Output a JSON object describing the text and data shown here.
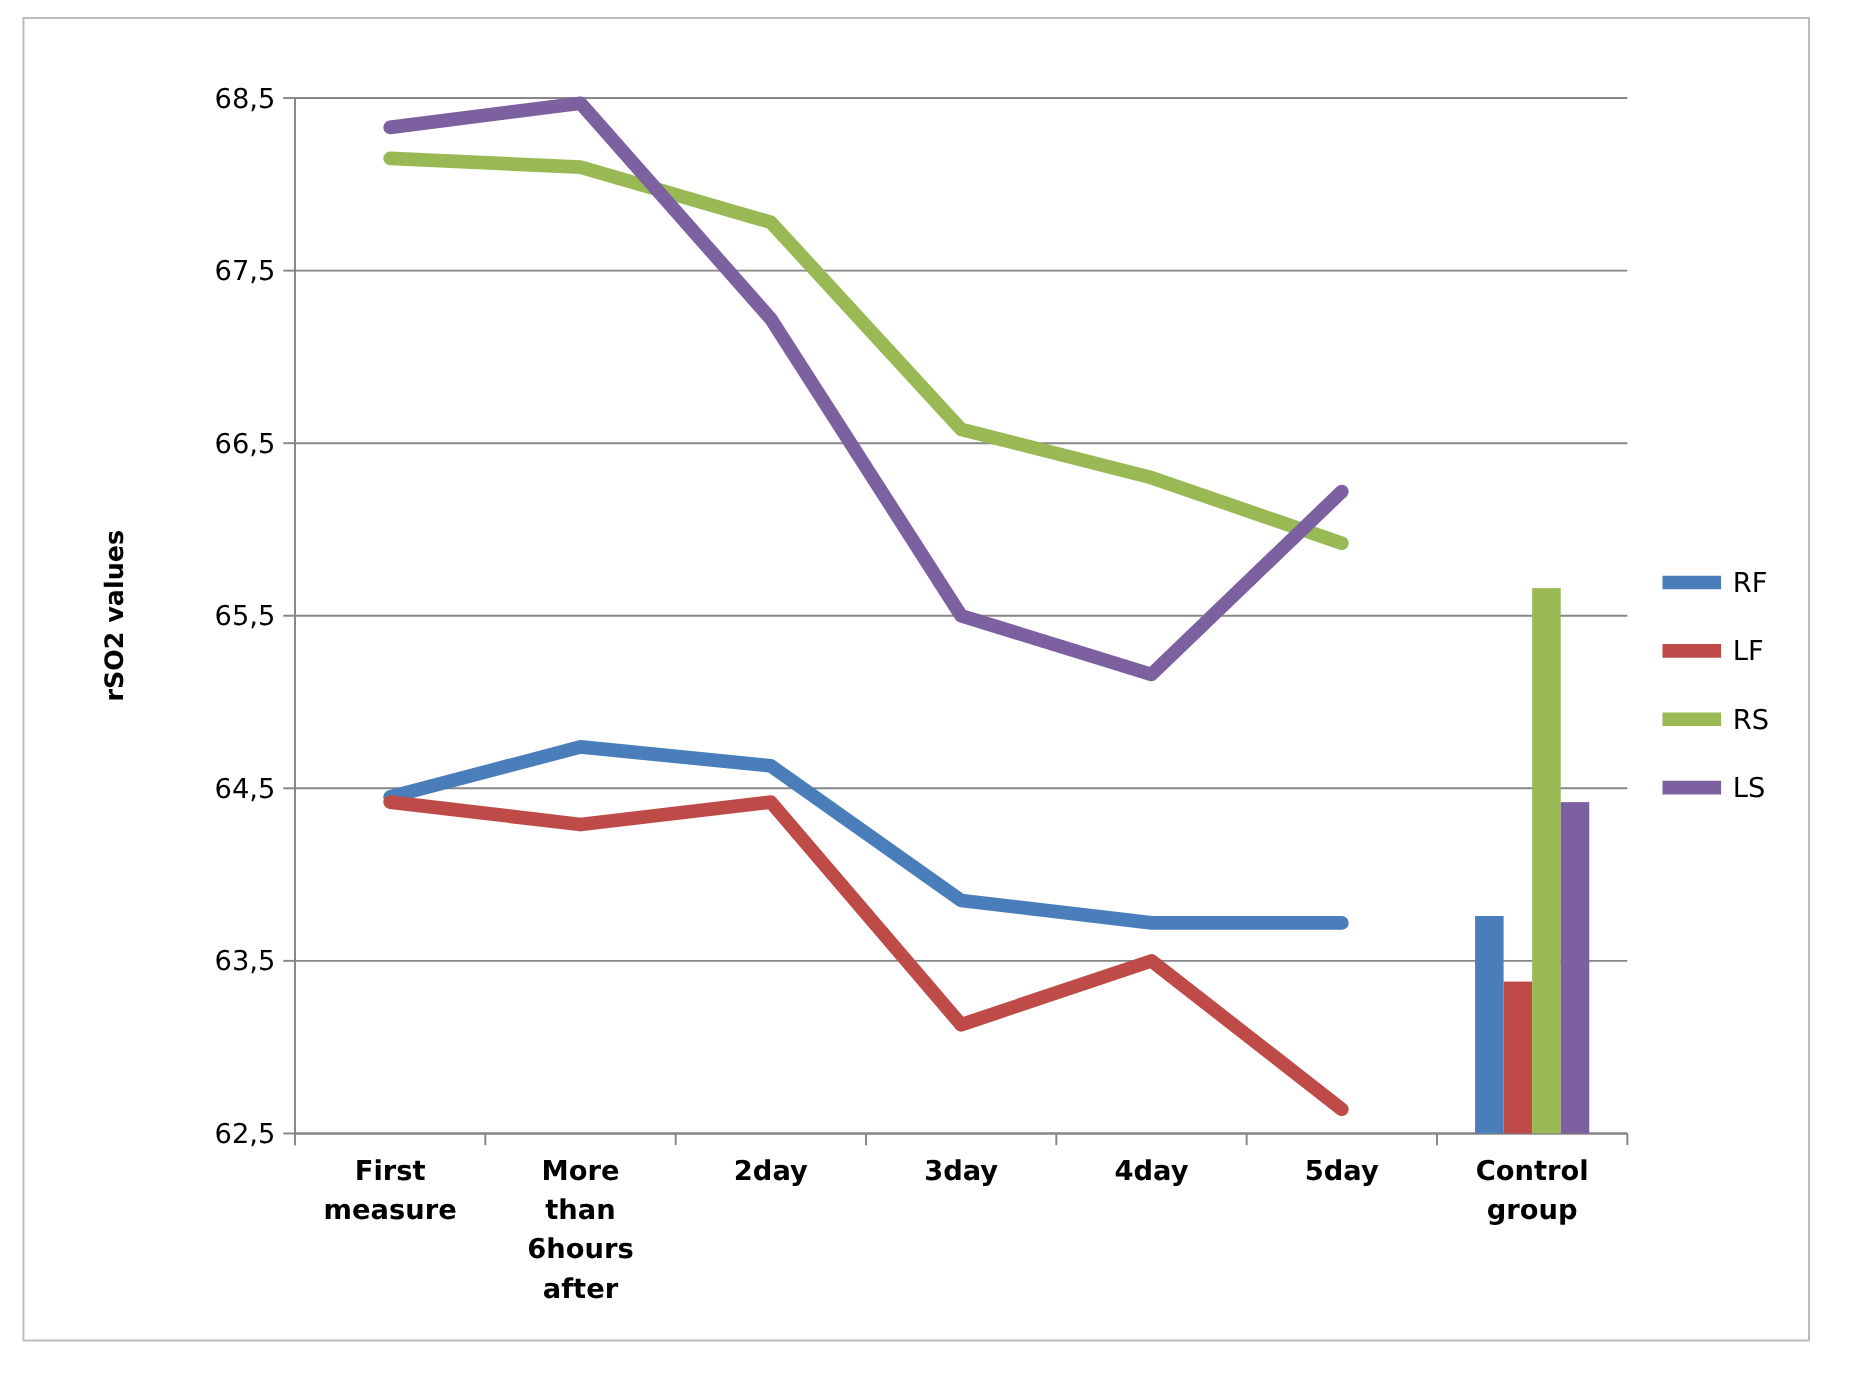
{
  "chart_data": {
    "type": "line",
    "ylabel": "rSO2 values",
    "categories": [
      "First measure",
      "More than 6hours after",
      "2day",
      "3day",
      "4day",
      "5day",
      "Control group"
    ],
    "ylim": [
      62.5,
      68.5
    ],
    "yticks": [
      {
        "value": 62.5,
        "label": "62,5"
      },
      {
        "value": 63.5,
        "label": "63,5"
      },
      {
        "value": 64.5,
        "label": "64,5"
      },
      {
        "value": 65.5,
        "label": "65,5"
      },
      {
        "value": 66.5,
        "label": "66,5"
      },
      {
        "value": 67.5,
        "label": "67,5"
      },
      {
        "value": 68.5,
        "label": "68,5"
      }
    ],
    "grid": "y",
    "legend": "right",
    "marker": "none",
    "line_style": "solid",
    "series": [
      {
        "name": "RF",
        "color": "#4a7ebb",
        "values": [
          64.45,
          64.74,
          64.63,
          63.85,
          63.72,
          63.72,
          null
        ]
      },
      {
        "name": "LF",
        "color": "#be4b48",
        "values": [
          64.42,
          64.29,
          64.42,
          63.13,
          63.5,
          62.64,
          null
        ]
      },
      {
        "name": "RS",
        "color": "#98b954",
        "values": [
          68.15,
          68.1,
          67.78,
          66.58,
          66.3,
          65.92,
          null
        ]
      },
      {
        "name": "LS",
        "color": "#7d60a0",
        "values": [
          68.33,
          68.47,
          67.22,
          65.5,
          65.16,
          66.22,
          null
        ]
      },
      {
        "type": "bar",
        "color": "#4a7ebb",
        "values": [
          null,
          null,
          null,
          null,
          null,
          null,
          63.76
        ]
      },
      {
        "type": "bar",
        "color": "#be4b48",
        "values": [
          null,
          null,
          null,
          null,
          null,
          null,
          63.38
        ]
      },
      {
        "type": "bar",
        "color": "#98b954",
        "values": [
          null,
          null,
          null,
          null,
          null,
          null,
          65.66
        ]
      },
      {
        "type": "bar",
        "color": "#7d60a0",
        "values": [
          null,
          null,
          null,
          null,
          null,
          null,
          64.42
        ]
      }
    ]
  }
}
